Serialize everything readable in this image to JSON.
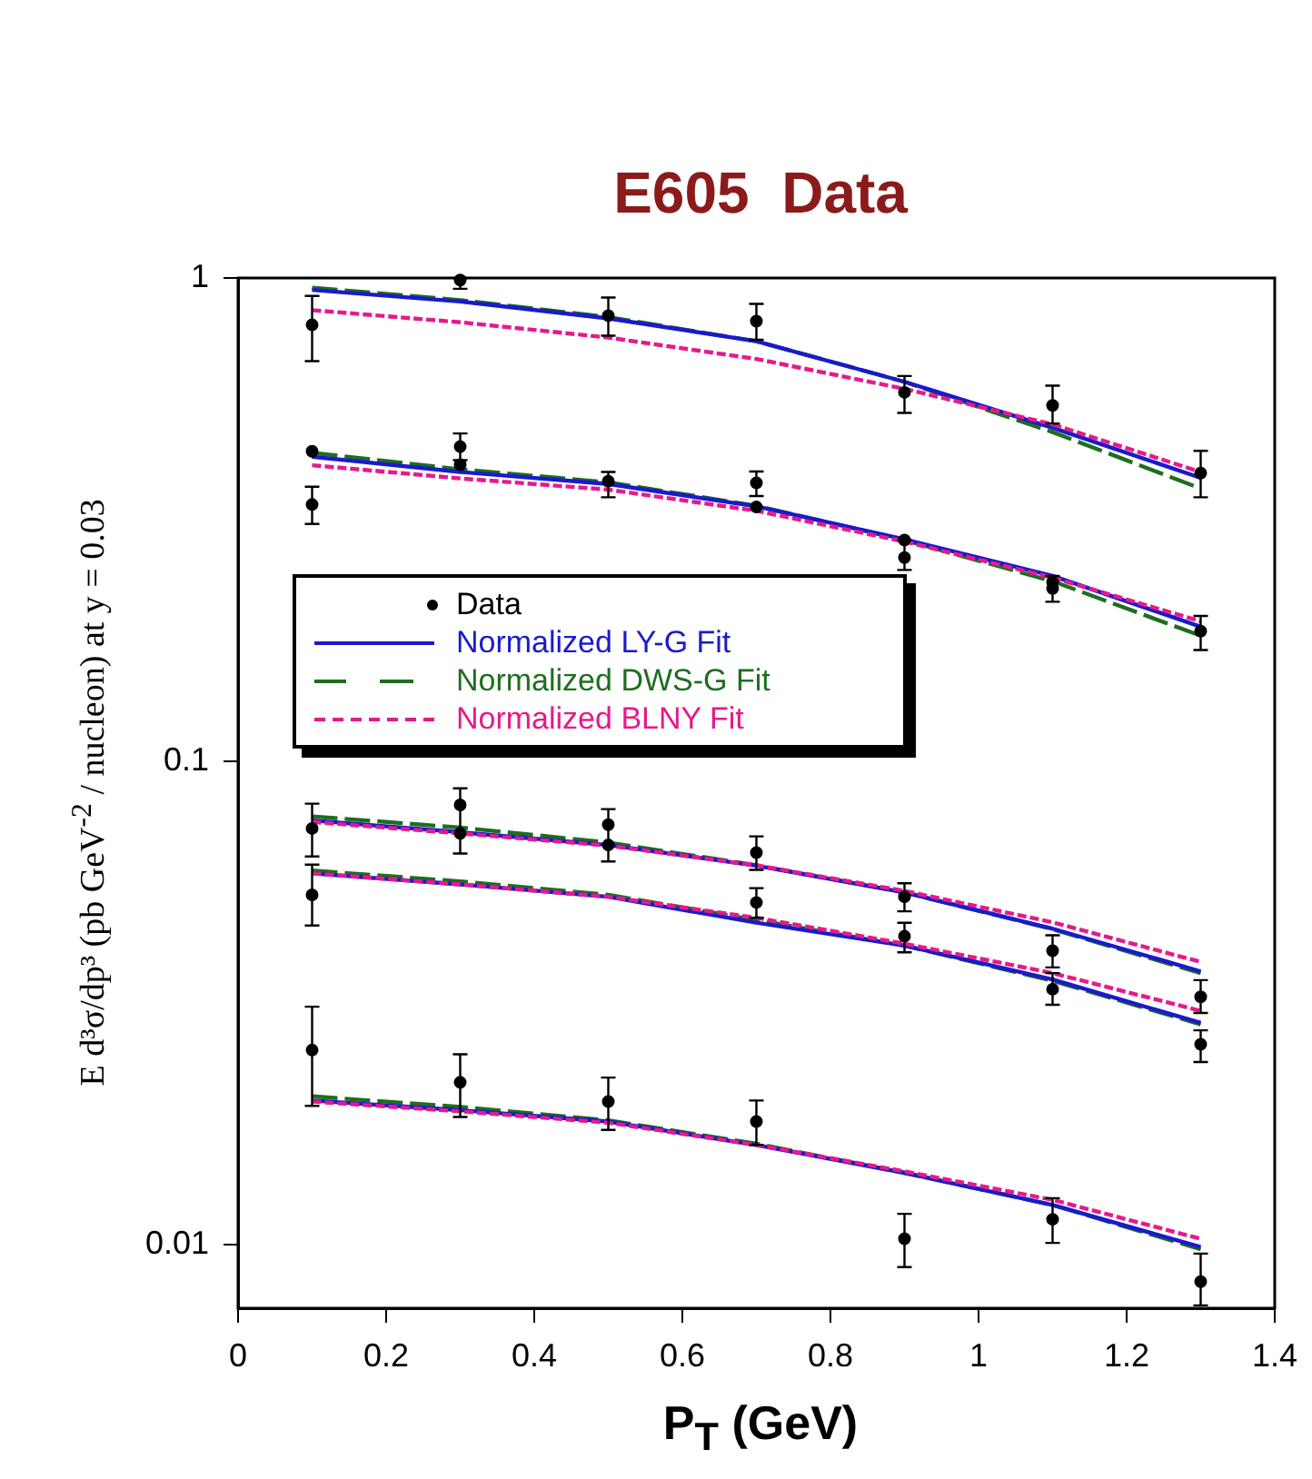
{
  "chart_data": {
    "type": "scatter",
    "title": "E605  Data",
    "xlabel": "P$_{T}$ (GeV)",
    "ylabel": "E d³σ/dp³ (pb GeV$^{-2}$ / nucleon)  at y = 0.03",
    "xlim": [
      0,
      1.4
    ],
    "xticks": [
      0,
      0.2,
      0.4,
      0.6,
      0.8,
      1,
      1.2,
      1.4
    ],
    "ylim": [
      0.0074,
      1
    ],
    "yticks": [
      1,
      0.1,
      0.01
    ],
    "log": "y",
    "grid": false,
    "legend": "left",
    "series": [
      {
        "name": "Data",
        "type": "scatter",
        "color": "#000000",
        "marker": "circle",
        "x": [
          0.1,
          0.3,
          0.5,
          0.7,
          0.9,
          1.1,
          1.3,
          0.1,
          0.1,
          0.3,
          0.3,
          0.5,
          0.7,
          0.7,
          0.9,
          0.9,
          1.1,
          1.1,
          1.3,
          0.1,
          0.3,
          0.3,
          0.5,
          0.5,
          0.7,
          0.9,
          1.1,
          1.3,
          0.1,
          0.7,
          0.9,
          1.1,
          1.3,
          0.1,
          0.3,
          0.5,
          0.7,
          0.9,
          1.1,
          1.3
        ],
        "values": [
          0.8,
          0.99,
          0.836,
          0.814,
          0.58,
          0.545,
          0.395,
          0.438,
          0.34,
          0.448,
          0.411,
          0.38,
          0.377,
          0.336,
          0.287,
          0.264,
          0.235,
          0.228,
          0.186,
          0.0727,
          0.0813,
          0.071,
          0.074,
          0.0672,
          0.0648,
          0.0525,
          0.0406,
          0.0326,
          0.053,
          0.0511,
          0.0435,
          0.0338,
          0.026,
          0.0253,
          0.0217,
          0.0198,
          0.018,
          0.0103,
          0.0113,
          0.0084
        ],
        "errors": [
          [
            0.673,
            0.918
          ],
          [
            0.95,
            1.0
          ],
          [
            0.76,
            0.911
          ],
          [
            0.745,
            0.884
          ],
          [
            0.526,
            0.627
          ],
          [
            0.5,
            0.599
          ],
          [
            0.352,
            0.439
          ],
          null,
          [
            0.31,
            0.37
          ],
          [
            0.42,
            0.477
          ],
          null,
          [
            0.352,
            0.397
          ],
          [
            0.354,
            0.398
          ],
          null,
          null,
          [
            0.249,
            0.287
          ],
          null,
          [
            0.214,
            0.242
          ],
          [
            0.17,
            0.2
          ],
          [
            0.0636,
            0.0818
          ],
          [
            0.0645,
            0.088
          ],
          null,
          null,
          [
            0.0621,
            0.0797
          ],
          [
            0.0597,
            0.07
          ],
          [
            0.049,
            0.056
          ],
          [
            0.0375,
            0.0437
          ],
          [
            0.0302,
            0.0353
          ],
          [
            0.0458,
            0.0612
          ],
          [
            0.0475,
            0.0547
          ],
          [
            0.0403,
            0.0464
          ],
          [
            0.0314,
            0.0365
          ],
          [
            0.0239,
            0.0278
          ],
          [
            0.0194,
            0.0311
          ],
          [
            0.0184,
            0.0248
          ],
          [
            0.0173,
            0.0222
          ],
          [
            0.0161,
            0.0199
          ],
          [
            0.009,
            0.0116
          ],
          [
            0.0101,
            0.0125
          ],
          [
            0.0075,
            0.0096
          ]
        ]
      },
      {
        "name": "Normalized LY-G Fit",
        "type": "line",
        "color": "#1a1acc",
        "line_style": "solid",
        "marker": "none",
        "x": [
          0.1,
          0.3,
          0.5,
          0.7,
          0.9,
          1.1,
          1.3
        ],
        "values": [
          0.945,
          0.894,
          0.825,
          0.74,
          0.61,
          0.49,
          0.386
        ]
      },
      {
        "type": "line",
        "color": "#1a1acc",
        "line_style": "solid",
        "marker": "none",
        "x": [
          0.1,
          0.3,
          0.5,
          0.7,
          0.9,
          1.1,
          1.3
        ],
        "values": [
          0.427,
          0.397,
          0.375,
          0.337,
          0.288,
          0.242,
          0.19
        ]
      },
      {
        "type": "line",
        "color": "#1a1acc",
        "line_style": "solid",
        "marker": "none",
        "x": [
          0.1,
          0.3,
          0.5,
          0.7,
          0.9,
          1.1,
          1.3
        ],
        "values": [
          0.0755,
          0.0714,
          0.0672,
          0.0609,
          0.0536,
          0.0451,
          0.0368
        ]
      },
      {
        "type": "line",
        "color": "#1a1acc",
        "line_style": "solid",
        "marker": "none",
        "x": [
          0.1,
          0.3,
          0.5,
          0.7,
          0.9,
          1.1,
          1.3
        ],
        "values": [
          0.0587,
          0.0557,
          0.0525,
          0.0464,
          0.0416,
          0.0354,
          0.0288
        ]
      },
      {
        "type": "line",
        "color": "#1a1acc",
        "line_style": "solid",
        "marker": "none",
        "x": [
          0.1,
          0.3,
          0.5,
          0.7,
          0.9,
          1.1,
          1.3
        ],
        "values": [
          0.0199,
          0.019,
          0.018,
          0.0161,
          0.0141,
          0.0121,
          0.0099
        ]
      },
      {
        "name": "Normalized DWS-G Fit",
        "type": "line",
        "color": "#1e6e1e",
        "line_style": "dashed",
        "marker": "none",
        "x": [
          0.1,
          0.3,
          0.5,
          0.7,
          0.9,
          1.1,
          1.3
        ],
        "values": [
          0.955,
          0.9,
          0.83,
          0.74,
          0.61,
          0.48,
          0.367
        ]
      },
      {
        "type": "line",
        "color": "#1e6e1e",
        "line_style": "dashed",
        "marker": "none",
        "x": [
          0.1,
          0.3,
          0.5,
          0.7,
          0.9,
          1.1,
          1.3
        ],
        "values": [
          0.435,
          0.402,
          0.378,
          0.338,
          0.287,
          0.236,
          0.182
        ]
      },
      {
        "type": "line",
        "color": "#1e6e1e",
        "line_style": "dashed",
        "marker": "none",
        "x": [
          0.1,
          0.3,
          0.5,
          0.7,
          0.9,
          1.1,
          1.3
        ],
        "values": [
          0.077,
          0.073,
          0.068,
          0.061,
          0.0536,
          0.045,
          0.0365
        ]
      },
      {
        "type": "line",
        "color": "#1e6e1e",
        "line_style": "dashed",
        "marker": "none",
        "x": [
          0.1,
          0.3,
          0.5,
          0.7,
          0.9,
          1.1,
          1.3
        ],
        "values": [
          0.0595,
          0.0565,
          0.053,
          0.047,
          0.0416,
          0.0352,
          0.0286
        ]
      },
      {
        "type": "line",
        "color": "#1e6e1e",
        "line_style": "dashed",
        "marker": "none",
        "x": [
          0.1,
          0.3,
          0.5,
          0.7,
          0.9,
          1.1,
          1.3
        ],
        "values": [
          0.0203,
          0.0193,
          0.0181,
          0.0162,
          0.0141,
          0.0121,
          0.0098
        ]
      },
      {
        "name": "Normalized BLNY Fit",
        "type": "line",
        "color": "#e6198c",
        "line_style": "dotted",
        "marker": "none",
        "x": [
          0.1,
          0.3,
          0.5,
          0.7,
          0.9,
          1.1,
          1.3
        ],
        "values": [
          0.858,
          0.81,
          0.753,
          0.68,
          0.59,
          0.498,
          0.397
        ]
      },
      {
        "type": "line",
        "color": "#e6198c",
        "line_style": "dotted",
        "marker": "none",
        "x": [
          0.1,
          0.3,
          0.5,
          0.7,
          0.9,
          1.1,
          1.3
        ],
        "values": [
          0.41,
          0.385,
          0.365,
          0.33,
          0.285,
          0.24,
          0.195
        ]
      },
      {
        "type": "line",
        "color": "#e6198c",
        "line_style": "dotted",
        "marker": "none",
        "x": [
          0.1,
          0.3,
          0.5,
          0.7,
          0.9,
          1.1,
          1.3
        ],
        "values": [
          0.075,
          0.071,
          0.067,
          0.061,
          0.054,
          0.0465,
          0.0385
        ]
      },
      {
        "type": "line",
        "color": "#e6198c",
        "line_style": "dotted",
        "marker": "none",
        "x": [
          0.1,
          0.3,
          0.5,
          0.7,
          0.9,
          1.1,
          1.3
        ],
        "values": [
          0.0587,
          0.0557,
          0.0525,
          0.0475,
          0.042,
          0.0365,
          0.0305
        ]
      },
      {
        "type": "line",
        "color": "#e6198c",
        "line_style": "dotted",
        "marker": "none",
        "x": [
          0.1,
          0.3,
          0.5,
          0.7,
          0.9,
          1.1,
          1.3
        ],
        "values": [
          0.0198,
          0.0189,
          0.0179,
          0.0161,
          0.0142,
          0.0124,
          0.0103
        ]
      }
    ]
  }
}
